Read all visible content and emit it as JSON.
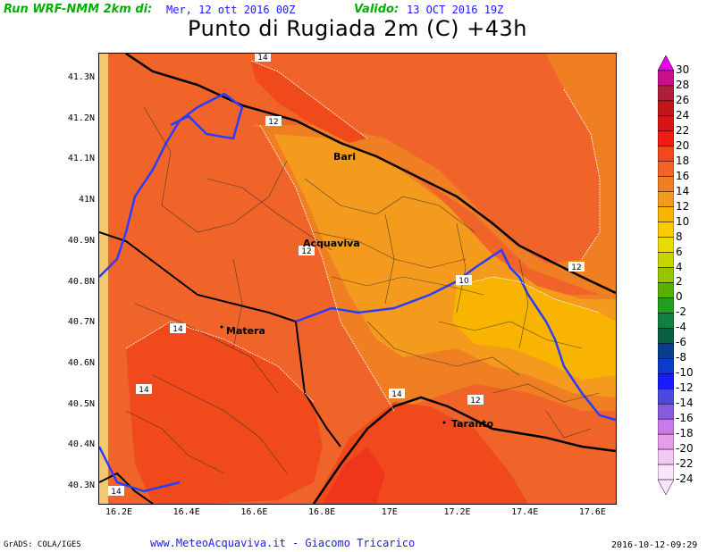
{
  "header": {
    "run_label": "Run WRF-NMM 2km di:",
    "run_date": "Mer, 12 ott 2016 00Z",
    "valid_label": "Valido:",
    "valid_date": "13 OCT 2016 19Z",
    "title": "Punto di Rugiada 2m (C) +43h"
  },
  "map": {
    "lat_ticks": [
      "41.3N",
      "41.2N",
      "41.1N",
      "41N",
      "40.9N",
      "40.8N",
      "40.7N",
      "40.6N",
      "40.5N",
      "40.4N",
      "40.3N"
    ],
    "lon_ticks": [
      "16.2E",
      "16.4E",
      "16.6E",
      "16.8E",
      "17E",
      "17.2E",
      "17.4E",
      "17.6E"
    ],
    "cities": [
      "Bari",
      "Acquaviva",
      "Matera",
      "Taranto"
    ],
    "contour_labels": [
      "14",
      "12",
      "12",
      "10",
      "12",
      "14",
      "14",
      "14",
      "12",
      "14"
    ],
    "colors": {
      "c16": "#f04a1c",
      "c14": "#f0642a",
      "c12": "#f07e22",
      "c10": "#f49a1c",
      "c8": "#f8b400",
      "border_national": "#000000",
      "border_regional": "#2a3cff"
    }
  },
  "colorbar": {
    "labels": [
      "30",
      "28",
      "26",
      "24",
      "22",
      "20",
      "18",
      "16",
      "14",
      "12",
      "10",
      "8",
      "6",
      "4",
      "2",
      "0",
      "-2",
      "-4",
      "-6",
      "-8",
      "-10",
      "-12",
      "-14",
      "-16",
      "-18",
      "-20",
      "-22",
      "-24"
    ],
    "colors": [
      "#e800e8",
      "#c8108c",
      "#b01e3e",
      "#c01818",
      "#d81414",
      "#f01e10",
      "#f04a1c",
      "#f0642a",
      "#f07e22",
      "#f49a1c",
      "#f8b400",
      "#f8cc00",
      "#e8dc00",
      "#c8d400",
      "#98c400",
      "#58b000",
      "#20a020",
      "#108040",
      "#086040",
      "#0a3c90",
      "#0a3ccc",
      "#1a1aff",
      "#4a4adc",
      "#8a5adc",
      "#c87ae8",
      "#e89ce8",
      "#f4c8f4",
      "#fce4fc"
    ]
  },
  "footer": {
    "grads": "GrADS: COLA/IGES",
    "credit": "www.MeteoAcquaviva.it  -  Giacomo Tricarico",
    "stamp": "2016-10-12-09:29"
  }
}
